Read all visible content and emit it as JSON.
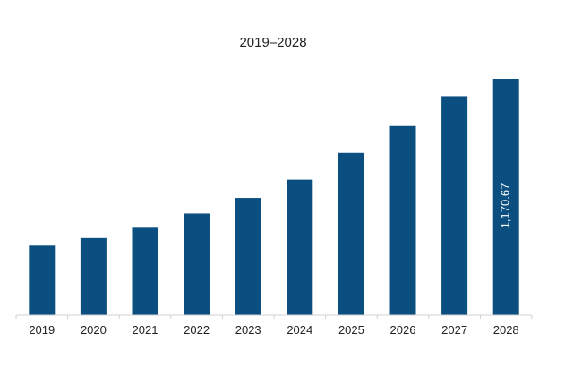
{
  "chart_data": {
    "type": "bar",
    "title": "2019–2028",
    "xlabel": "",
    "ylabel": "",
    "categories": [
      "2019",
      "2020",
      "2021",
      "2022",
      "2023",
      "2024",
      "2025",
      "2026",
      "2027",
      "2028"
    ],
    "values": [
      344.6,
      382.1,
      433.2,
      503.5,
      580.6,
      671.3,
      803.6,
      936.7,
      1084.5,
      1170.67
    ],
    "data_labels": [
      {
        "category": "2028",
        "text": "1,170.67"
      }
    ],
    "ylim": [
      0,
      1170.67
    ],
    "grid": false,
    "legend": "none",
    "bar_color": "#0a4f80",
    "axis_color": "#d0d0d0",
    "text_color": "#222222",
    "label_color": "#ffffff"
  }
}
